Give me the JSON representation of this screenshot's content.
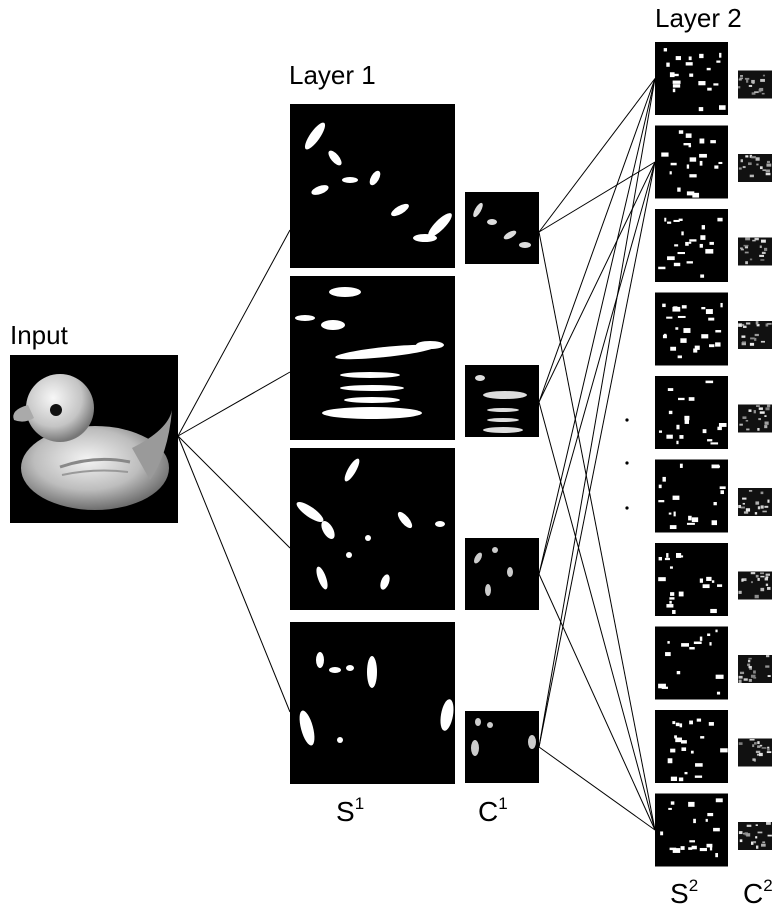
{
  "labels": {
    "input": "Input",
    "layer1": "Layer 1",
    "layer2": "Layer 2"
  },
  "axis_labels": {
    "s1": {
      "base": "S",
      "sup": "1"
    },
    "c1": {
      "base": "C",
      "sup": "1"
    },
    "s2": {
      "base": "S",
      "sup": "2"
    },
    "c2": {
      "base": "C",
      "sup": "2"
    }
  },
  "ellipsis": ".\n.\n.",
  "layer1_map_count": 4,
  "layer2_map_count": 10,
  "colors": {
    "map_background": "#000000",
    "feature": "#ffffff",
    "connection": "#000000"
  }
}
